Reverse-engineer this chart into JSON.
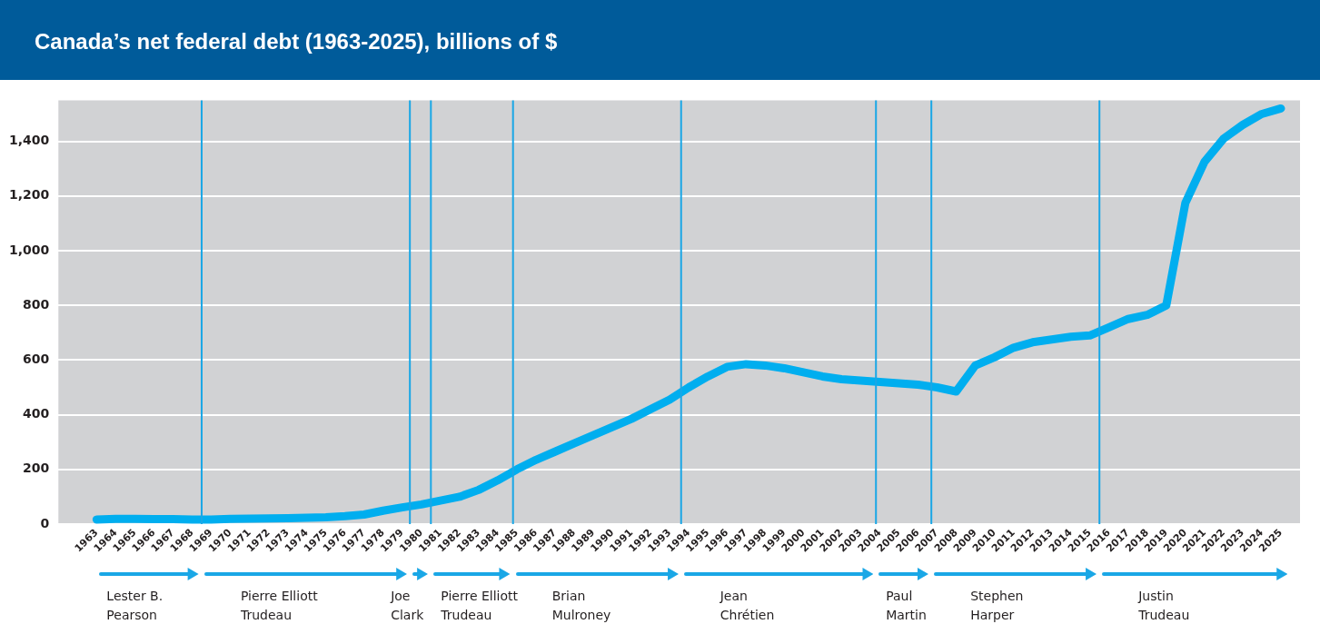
{
  "chart_data": {
    "type": "line",
    "title": "Canada’s net federal debt (1963-2025), billions of $",
    "x": [
      1963,
      1964,
      1965,
      1966,
      1967,
      1968,
      1969,
      1970,
      1971,
      1972,
      1973,
      1974,
      1975,
      1976,
      1977,
      1978,
      1979,
      1980,
      1981,
      1982,
      1983,
      1984,
      1985,
      1986,
      1987,
      1988,
      1989,
      1990,
      1991,
      1992,
      1993,
      1994,
      1995,
      1996,
      1997,
      1998,
      1999,
      2000,
      2001,
      2002,
      2003,
      2004,
      2005,
      2006,
      2007,
      2008,
      2009,
      2010,
      2011,
      2012,
      2013,
      2014,
      2015,
      2016,
      2017,
      2018,
      2019,
      2020,
      2021,
      2022,
      2023,
      2024,
      2025
    ],
    "series": [
      {
        "color": "#00aeef",
        "values": [
          17,
          19,
          19,
          18,
          18,
          17,
          17,
          19,
          20,
          21,
          22,
          23,
          25,
          29,
          35,
          49,
          61,
          72,
          86,
          100,
          125,
          160,
          200,
          235,
          265,
          295,
          325,
          355,
          385,
          420,
          455,
          500,
          540,
          575,
          585,
          580,
          570,
          555,
          540,
          530,
          525,
          520,
          515,
          510,
          500,
          485,
          580,
          610,
          645,
          665,
          675,
          685,
          690,
          720,
          750,
          765,
          800,
          1175,
          1325,
          1410,
          1460,
          1500,
          1520
        ]
      }
    ],
    "xlim": [
      1961,
      2026
    ],
    "xticks": [
      1963,
      1964,
      1965,
      1966,
      1967,
      1968,
      1969,
      1970,
      1971,
      1972,
      1973,
      1974,
      1975,
      1976,
      1977,
      1978,
      1979,
      1980,
      1981,
      1982,
      1983,
      1984,
      1985,
      1986,
      1987,
      1988,
      1989,
      1990,
      1991,
      1992,
      1993,
      1994,
      1995,
      1996,
      1997,
      1998,
      1999,
      2000,
      2001,
      2002,
      2003,
      2004,
      2005,
      2006,
      2007,
      2008,
      2009,
      2010,
      2011,
      2012,
      2013,
      2014,
      2015,
      2016,
      2017,
      2018,
      2019,
      2020,
      2021,
      2022,
      2023,
      2024,
      2025
    ],
    "ylim": [
      0,
      1550
    ],
    "yticks": [
      {
        "value": 0,
        "label": "0"
      },
      {
        "value": 200,
        "label": "200"
      },
      {
        "value": 400,
        "label": "400"
      },
      {
        "value": 600,
        "label": "600"
      },
      {
        "value": 800,
        "label": "800"
      },
      {
        "value": 1000,
        "label": "1,000"
      },
      {
        "value": 1200,
        "label": "1,200"
      },
      {
        "value": 1400,
        "label": "1,400"
      }
    ],
    "grid": "y",
    "marker": "none",
    "line_style": "solid",
    "ref_lines": [
      {
        "axis": "x",
        "value": 1968.5,
        "color": "#1aa7e6"
      },
      {
        "axis": "x",
        "value": 1979.4,
        "color": "#1aa7e6"
      },
      {
        "axis": "x",
        "value": 1980.5,
        "color": "#1aa7e6"
      },
      {
        "axis": "x",
        "value": 1984.8,
        "color": "#1aa7e6"
      },
      {
        "axis": "x",
        "value": 1993.6,
        "color": "#1aa7e6"
      },
      {
        "axis": "x",
        "value": 2003.8,
        "color": "#1aa7e6"
      },
      {
        "axis": "x",
        "value": 2006.7,
        "color": "#1aa7e6"
      },
      {
        "axis": "x",
        "value": 2015.5,
        "color": "#1aa7e6"
      }
    ],
    "annotations": [
      "Lester B.\nPearson",
      "Pierre Elliott\nTrudeau",
      "Joe\nClark",
      "Pierre Elliott\nTrudeau",
      "Brian\nMulroney",
      "Jean\nChrétien",
      "Paul\nMartin",
      "Stephen\nHarper",
      "Justin\nTrudeau"
    ],
    "legend": false
  }
}
